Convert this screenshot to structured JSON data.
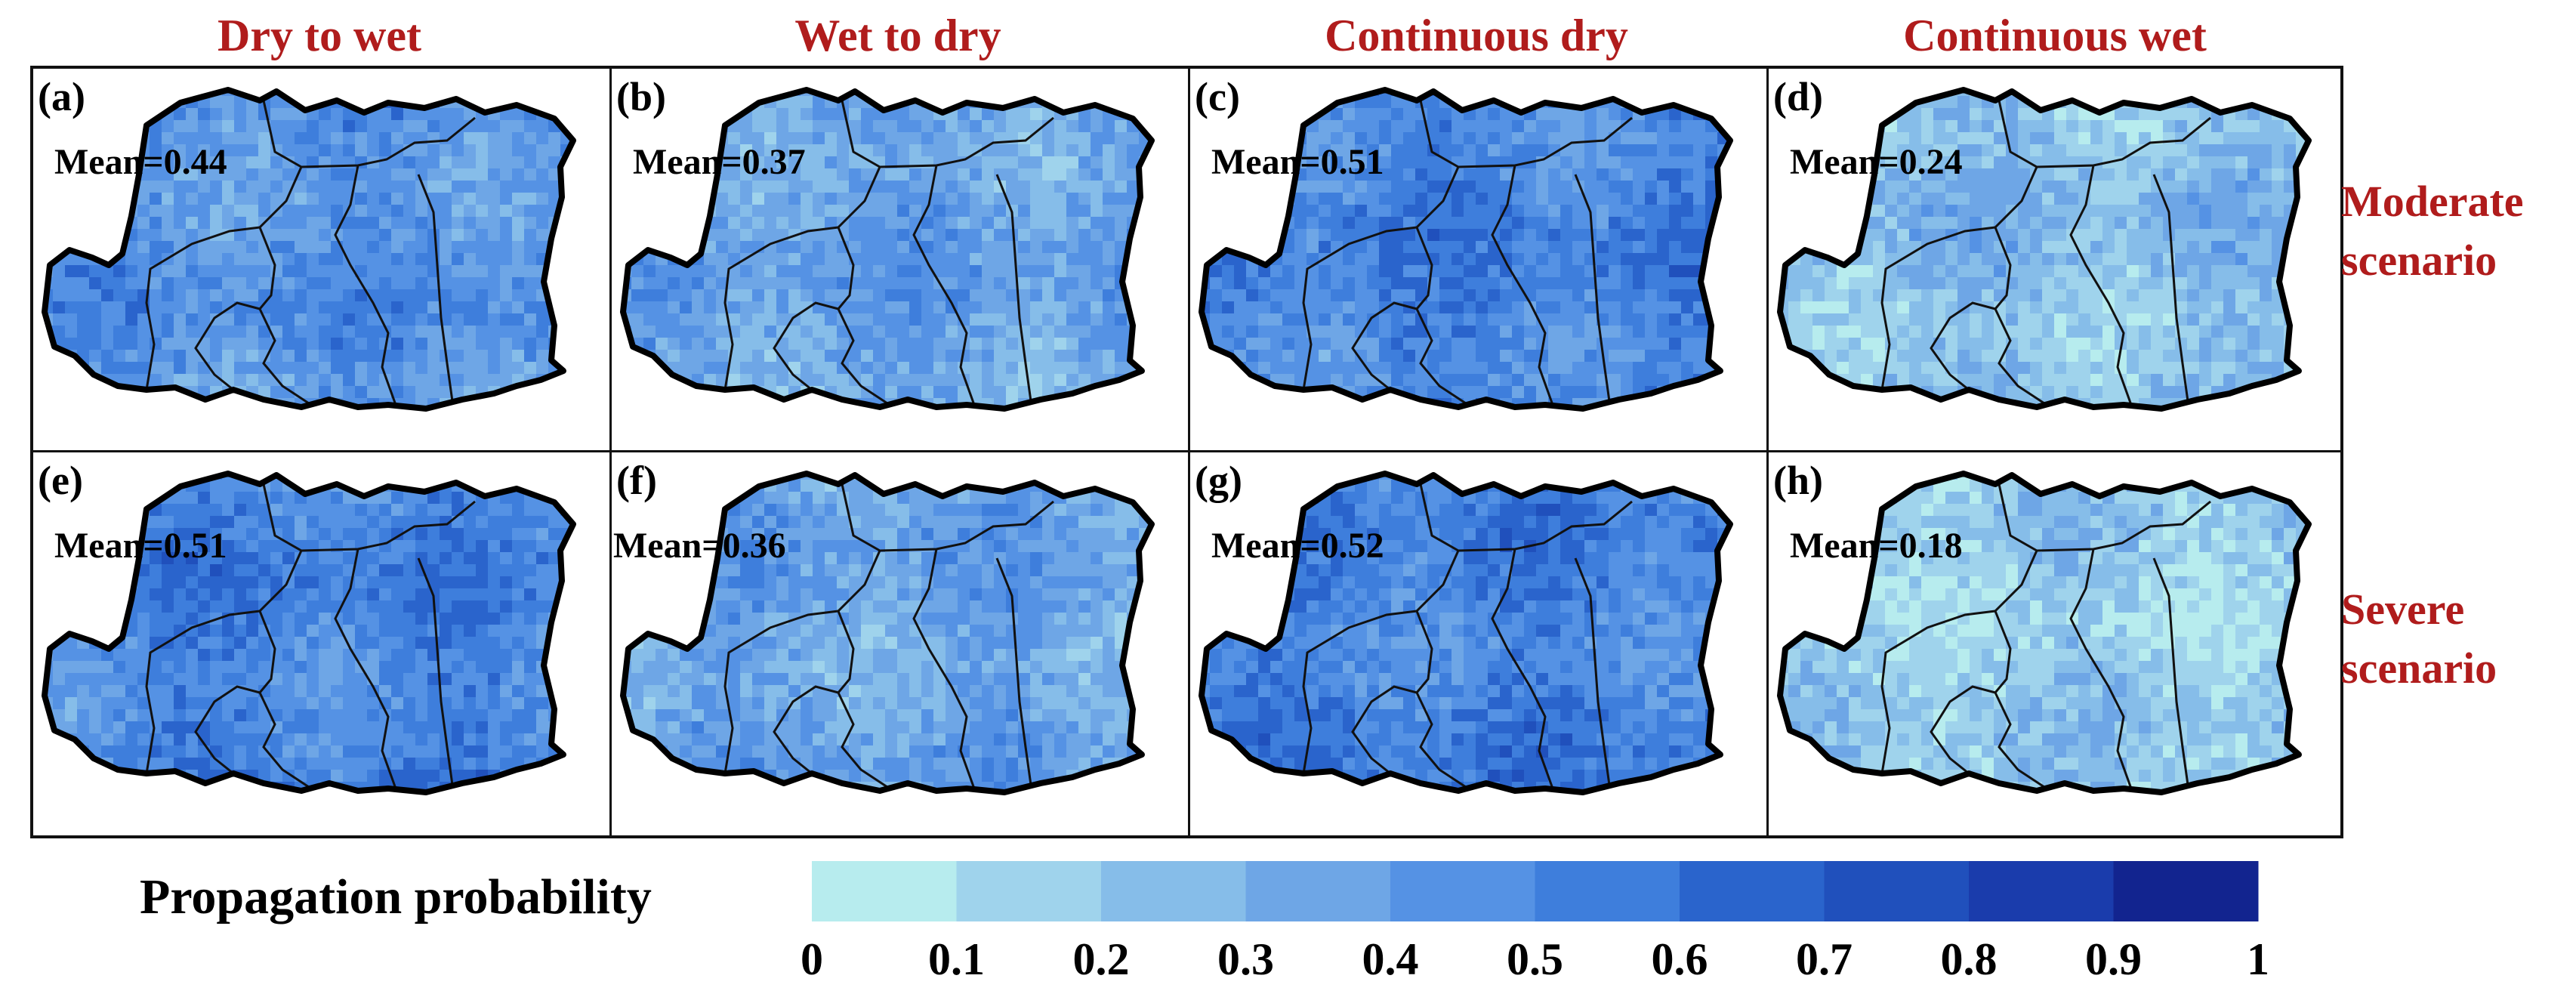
{
  "chart_data": {
    "type": "heatmap",
    "column_titles": [
      "Dry to wet",
      "Wet to dry",
      "Continuous dry",
      "Continuous wet"
    ],
    "row_labels": [
      {
        "line1": "Moderate",
        "line2": "scenario"
      },
      {
        "line1": "Severe",
        "line2": "scenario"
      }
    ],
    "panels": [
      {
        "label": "(a)",
        "mean_text": "Mean=0.44",
        "mean": 0.44
      },
      {
        "label": "(b)",
        "mean_text": "Mean=0.37",
        "mean": 0.37
      },
      {
        "label": "(c)",
        "mean_text": "Mean=0.51",
        "mean": 0.51
      },
      {
        "label": "(d)",
        "mean_text": "Mean=0.24",
        "mean": 0.24
      },
      {
        "label": "(e)",
        "mean_text": "Mean=0.51",
        "mean": 0.51
      },
      {
        "label": "(f)",
        "mean_text": "Mean=0.36",
        "mean": 0.36
      },
      {
        "label": "(g)",
        "mean_text": "Mean=0.52",
        "mean": 0.52
      },
      {
        "label": "(h)",
        "mean_text": "Mean=0.18",
        "mean": 0.18
      }
    ],
    "colorbar": {
      "title": "Propagation probability",
      "range": [
        0,
        1
      ],
      "ticks": [
        "0",
        "0.1",
        "0.2",
        "0.3",
        "0.4",
        "0.5",
        "0.6",
        "0.7",
        "0.8",
        "0.9",
        "1"
      ],
      "colors": [
        "#b7ecee",
        "#9fd3ec",
        "#86bde9",
        "#6ea6e6",
        "#5592e4",
        "#3e7edc",
        "#2a64cc",
        "#2050bc",
        "#1a3cac",
        "#12248f"
      ]
    }
  }
}
